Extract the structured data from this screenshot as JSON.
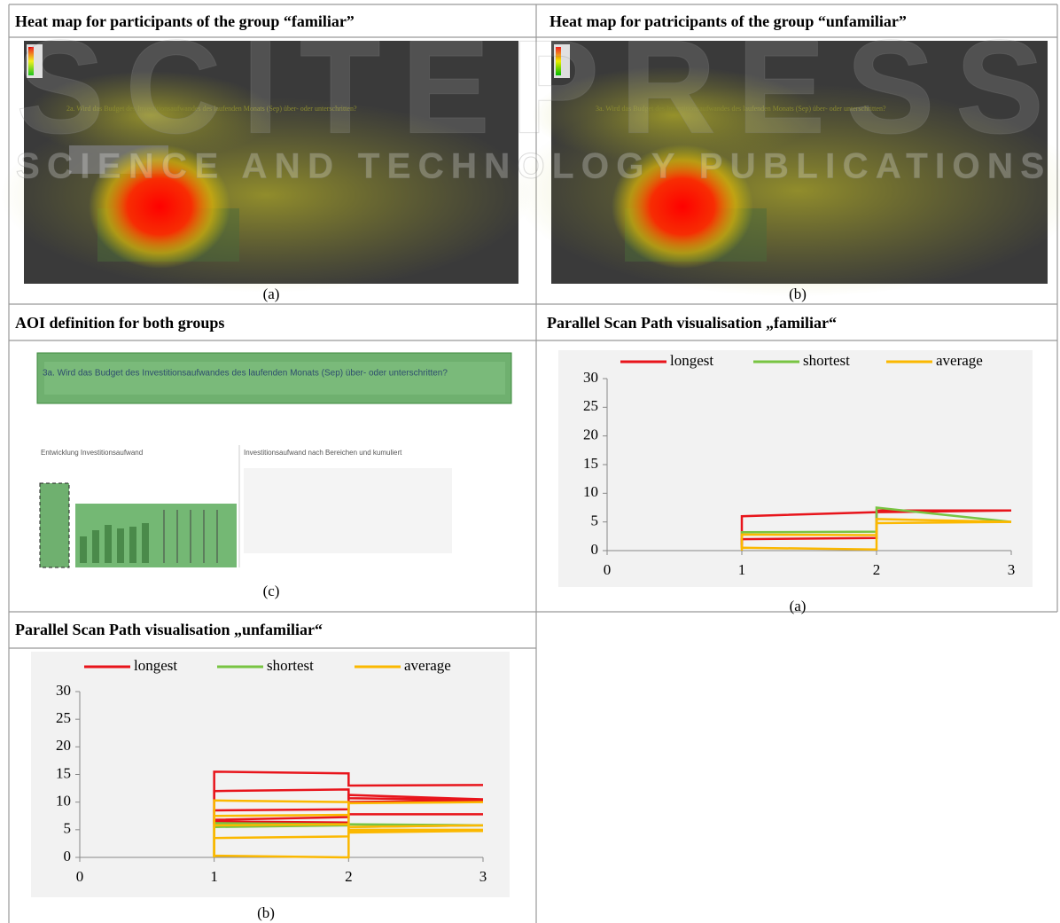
{
  "watermark": {
    "line1": "SCITEPRESS",
    "line2": "SCIENCE AND TECHNOLOGY PUBLICATIONS"
  },
  "heatmaps": [
    {
      "title": "Heat map for participants of the group “familiar”",
      "caption": "(a)",
      "question": "2a. Wird das Budget des Investitionsaufwandes des laufenden Monats (Sep) über- oder unterschritten?"
    },
    {
      "title": "Heat map for patricipants of the group “unfamiliar”",
      "caption": "(b)",
      "question": "3a. Wird das Budget des Investitionsaufwandes des laufenden Monats (Sep) über- oder unterschritten?"
    }
  ],
  "aoi": {
    "title": "AOI definition for both groups",
    "caption": "(c)",
    "question": "3a. Wird das Budget des Investitionsaufwandes des laufenden Monats (Sep) über- oder unterschritten?",
    "left_heading": "Entwicklung Investitionsaufwand",
    "right_heading": "Investitionsaufwand nach Bereichen und kumuliert"
  },
  "chart_data": [
    {
      "type": "line",
      "title": "Parallel Scan Path visualisation „familiar“",
      "caption": "(a)",
      "x": [
        1,
        1,
        2,
        2,
        3
      ],
      "xlim": [
        0,
        3
      ],
      "xticks": [
        0,
        1,
        2,
        3
      ],
      "ylim": [
        0,
        30
      ],
      "yticks": [
        0,
        5,
        10,
        15,
        20,
        25,
        30
      ],
      "series": [
        {
          "name": "longest",
          "color": "#e8141b",
          "lines": [
            [
              0.5,
              6,
              6.7,
              7,
              7
            ],
            [
              1,
              2,
              2.2,
              6.7,
              7
            ]
          ]
        },
        {
          "name": "shortest",
          "color": "#78c442",
          "lines": [
            [
              2.5,
              3.2,
              3.3,
              7.5,
              5
            ]
          ]
        },
        {
          "name": "average",
          "color": "#fbb800",
          "lines": [
            [
              0.3,
              2.8,
              2.7,
              5.5,
              5
            ],
            [
              0,
              0.5,
              0.2,
              4.8,
              5
            ]
          ]
        }
      ]
    },
    {
      "type": "line",
      "title": "Parallel Scan Path visualisation „unfamiliar“",
      "caption": "(b)",
      "x": [
        1,
        1,
        2,
        2,
        3
      ],
      "xlim": [
        0,
        3
      ],
      "xticks": [
        0,
        1,
        2,
        3
      ],
      "ylim": [
        0,
        30
      ],
      "yticks": [
        0,
        5,
        10,
        15,
        20,
        25,
        30
      ],
      "series": [
        {
          "name": "longest",
          "color": "#e8141b",
          "lines": [
            [
              7,
              15.5,
              15.2,
              13,
              13.1
            ],
            [
              6,
              12,
              12.3,
              10.7,
              10.4
            ],
            [
              6.5,
              8.5,
              8.7,
              10,
              10.3
            ],
            [
              6,
              6.8,
              7.3,
              7.8,
              7.8
            ],
            [
              5.5,
              6.5,
              6.3,
              11.3,
              10.5
            ]
          ]
        },
        {
          "name": "shortest",
          "color": "#78c442",
          "lines": [
            [
              0,
              5.5,
              5.8,
              6,
              5.8
            ],
            [
              0,
              6.2,
              6,
              5.5,
              5.8
            ]
          ]
        },
        {
          "name": "average",
          "color": "#fbb800",
          "lines": [
            [
              0,
              10.3,
              10,
              4.5,
              4.8
            ],
            [
              0,
              0.3,
              0,
              5.5,
              5.8
            ],
            [
              0,
              3.5,
              3.8,
              5,
              5
            ],
            [
              0,
              7.5,
              7.7,
              9.8,
              10
            ],
            [
              0,
              5.8,
              6,
              4.8,
              4.8
            ]
          ]
        }
      ]
    }
  ]
}
